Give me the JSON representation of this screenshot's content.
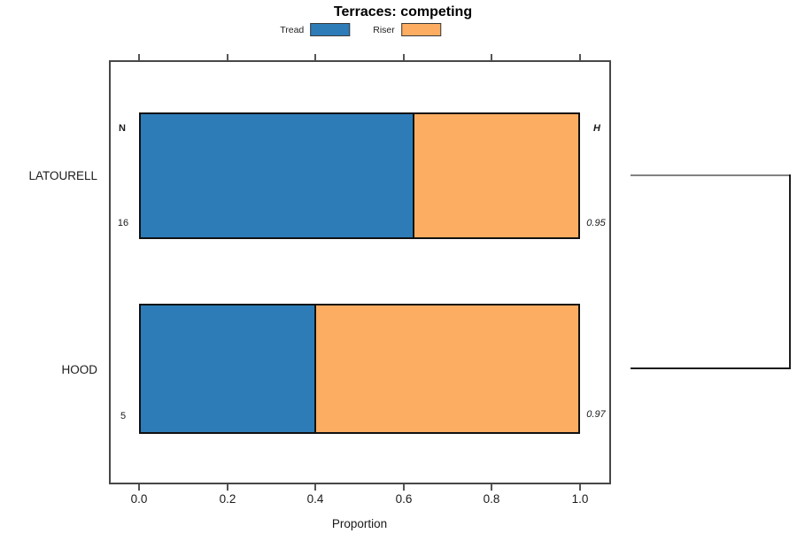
{
  "title": "Terraces: competing",
  "legend": {
    "items": [
      {
        "label": "Tread",
        "color": "#2d7cb8"
      },
      {
        "label": "Riser",
        "color": "#fcad61"
      }
    ]
  },
  "axis": {
    "xlabel": "Proportion",
    "ticks": [
      "0.0",
      "0.2",
      "0.4",
      "0.6",
      "0.8",
      "1.0"
    ]
  },
  "column_headers": {
    "n": "N",
    "h": "H"
  },
  "rows": [
    {
      "category": "LATOURELL",
      "n": "16",
      "h": "0.95"
    },
    {
      "category": "HOOD",
      "n": "5",
      "h": "0.97"
    }
  ],
  "chart_data": {
    "type": "bar",
    "orientation": "horizontal",
    "stacked": true,
    "title": "Terraces: competing",
    "xlabel": "Proportion",
    "xlim": [
      0,
      1
    ],
    "grid": false,
    "legend_position": "top-center",
    "categories": [
      "LATOURELL",
      "HOOD"
    ],
    "series": [
      {
        "name": "Tread",
        "color": "#2d7cb8",
        "values": [
          0.625,
          0.4
        ]
      },
      {
        "name": "Riser",
        "color": "#fcad61",
        "values": [
          0.375,
          0.6
        ]
      }
    ],
    "annotations": {
      "left_header": "N",
      "right_header": "H",
      "n_values": [
        16,
        5
      ],
      "h_values": [
        0.95,
        0.97
      ]
    },
    "right_bracket": {
      "description": "dendrogram-style bracket joining the two category rows outside the plot box",
      "top_line_color": "#828282",
      "bottom_line_color": "#1c1c1c",
      "join_color": "#1c1c1c"
    }
  }
}
